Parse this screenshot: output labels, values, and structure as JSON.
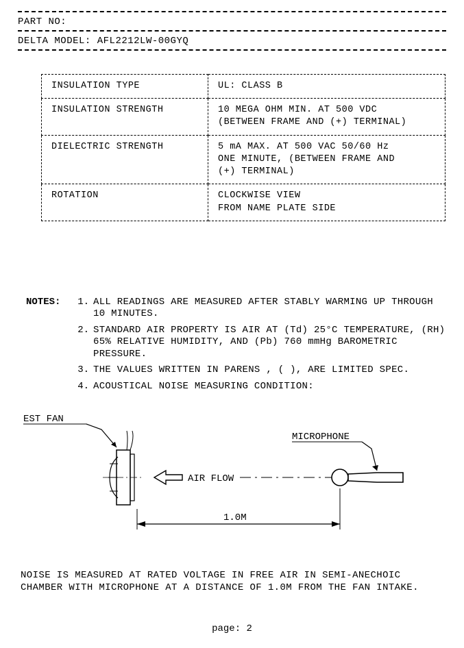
{
  "header": {
    "part_no_label": "PART NO:",
    "model_label": "DELTA MODEL:",
    "model_value": "AFL2212LW-00GYQ"
  },
  "table": {
    "rows": [
      {
        "label": "INSULATION TYPE",
        "value": "UL: CLASS B"
      },
      {
        "label": "INSULATION STRENGTH",
        "value": "10 MEGA OHM MIN. AT 500 VDC\n(BETWEEN FRAME AND (+) TERMINAL)"
      },
      {
        "label": "DIELECTRIC STRENGTH",
        "value": "5 mA MAX. AT 500 VAC 50/60 Hz\nONE MINUTE, (BETWEEN FRAME AND\n(+) TERMINAL)"
      },
      {
        "label": "ROTATION",
        "value": "CLOCKWISE VIEW\nFROM NAME PLATE SIDE"
      }
    ]
  },
  "notes": {
    "label": "NOTES:",
    "items": [
      "ALL READINGS ARE MEASURED AFTER STABLY WARMING UP THROUGH 10 MINUTES.",
      "STANDARD AIR PROPERTY IS AIR AT (Td) 25°C TEMPERATURE, (RH) 65% RELATIVE HUMIDITY, AND (Pb) 760 mmHg BAROMETRIC PRESSURE.",
      "THE VALUES WRITTEN IN PARENS , (    ), ARE LIMITED SPEC.",
      "ACOUSTICAL NOISE MEASURING CONDITION:"
    ]
  },
  "diagram": {
    "fan_label": "EST FAN",
    "mic_label": "MICROPHONE",
    "airflow_label": "AIR FLOW",
    "distance_label": "1.0M",
    "colors": {
      "stroke": "#000000",
      "fill_none": "none",
      "background": "#ffffff"
    },
    "stroke_width": 1.2,
    "font_family": "Courier New",
    "font_size": 14
  },
  "footer": {
    "note": "NOISE IS MEASURED AT RATED VOLTAGE IN FREE AIR IN SEMI-ANECHOIC CHAMBER WITH MICROPHONE AT A DISTANCE OF 1.0M FROM THE FAN INTAKE.",
    "page_label": "page: 2"
  }
}
